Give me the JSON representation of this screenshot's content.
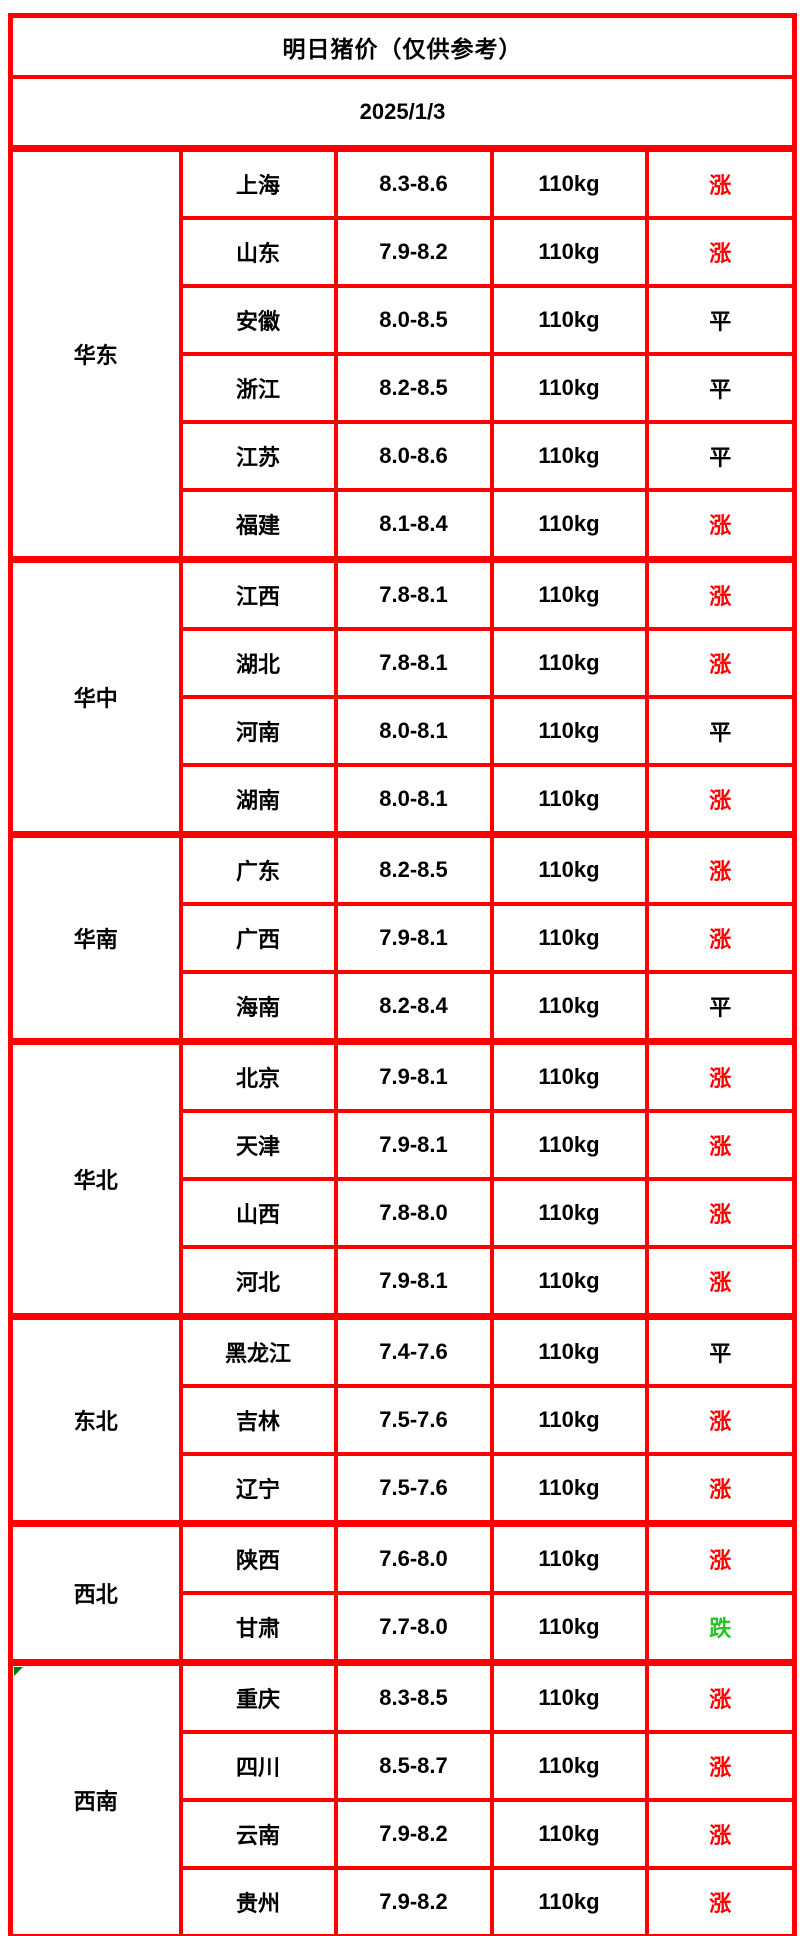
{
  "header": {
    "title": "明日猪价（仅供参考）",
    "date": "2025/1/3"
  },
  "colors": {
    "header_bg": "#ff6926",
    "border_red": "#fe0000",
    "trend_up": "#ff0000",
    "trend_flat": "#000000",
    "trend_down": "#22c322",
    "corner_marker_green": "#008000"
  },
  "table": {
    "groups": [
      {
        "region": "华东",
        "rows": [
          {
            "province": "上海",
            "price": "8.3-8.6",
            "weight": "110kg",
            "trend": "涨",
            "trend_type": "up"
          },
          {
            "province": "山东",
            "price": "7.9-8.2",
            "weight": "110kg",
            "trend": "涨",
            "trend_type": "up"
          },
          {
            "province": "安徽",
            "price": "8.0-8.5",
            "weight": "110kg",
            "trend": "平",
            "trend_type": "flat"
          },
          {
            "province": "浙江",
            "price": "8.2-8.5",
            "weight": "110kg",
            "trend": "平",
            "trend_type": "flat"
          },
          {
            "province": "江苏",
            "price": "8.0-8.6",
            "weight": "110kg",
            "trend": "平",
            "trend_type": "flat"
          },
          {
            "province": "福建",
            "price": "8.1-8.4",
            "weight": "110kg",
            "trend": "涨",
            "trend_type": "up"
          }
        ]
      },
      {
        "region": "华中",
        "rows": [
          {
            "province": "江西",
            "price": "7.8-8.1",
            "weight": "110kg",
            "trend": "涨",
            "trend_type": "up"
          },
          {
            "province": "湖北",
            "price": "7.8-8.1",
            "weight": "110kg",
            "trend": "涨",
            "trend_type": "up"
          },
          {
            "province": "河南",
            "price": "8.0-8.1",
            "weight": "110kg",
            "trend": "平",
            "trend_type": "flat"
          },
          {
            "province": "湖南",
            "price": "8.0-8.1",
            "weight": "110kg",
            "trend": "涨",
            "trend_type": "up"
          }
        ]
      },
      {
        "region": "华南",
        "rows": [
          {
            "province": "广东",
            "price": "8.2-8.5",
            "weight": "110kg",
            "trend": "涨",
            "trend_type": "up"
          },
          {
            "province": "广西",
            "price": "7.9-8.1",
            "weight": "110kg",
            "trend": "涨",
            "trend_type": "up"
          },
          {
            "province": "海南",
            "price": "8.2-8.4",
            "weight": "110kg",
            "trend": "平",
            "trend_type": "flat"
          }
        ]
      },
      {
        "region": "华北",
        "rows": [
          {
            "province": "北京",
            "price": "7.9-8.1",
            "weight": "110kg",
            "trend": "涨",
            "trend_type": "up"
          },
          {
            "province": "天津",
            "price": "7.9-8.1",
            "weight": "110kg",
            "trend": "涨",
            "trend_type": "up"
          },
          {
            "province": "山西",
            "price": "7.8-8.0",
            "weight": "110kg",
            "trend": "涨",
            "trend_type": "up"
          },
          {
            "province": "河北",
            "price": "7.9-8.1",
            "weight": "110kg",
            "trend": "涨",
            "trend_type": "up"
          }
        ]
      },
      {
        "region": "东北",
        "rows": [
          {
            "province": "黑龙江",
            "price": "7.4-7.6",
            "weight": "110kg",
            "trend": "平",
            "trend_type": "flat"
          },
          {
            "province": "吉林",
            "price": "7.5-7.6",
            "weight": "110kg",
            "trend": "涨",
            "trend_type": "up"
          },
          {
            "province": "辽宁",
            "price": "7.5-7.6",
            "weight": "110kg",
            "trend": "涨",
            "trend_type": "up"
          }
        ]
      },
      {
        "region": "西北",
        "rows": [
          {
            "province": "陕西",
            "price": "7.6-8.0",
            "weight": "110kg",
            "trend": "涨",
            "trend_type": "up"
          },
          {
            "province": "甘肃",
            "price": "7.7-8.0",
            "weight": "110kg",
            "trend": "跌",
            "trend_type": "down"
          }
        ]
      },
      {
        "region": "西南",
        "corner_marker": true,
        "rows": [
          {
            "province": "重庆",
            "price": "8.3-8.5",
            "weight": "110kg",
            "trend": "涨",
            "trend_type": "up"
          },
          {
            "province": "四川",
            "price": "8.5-8.7",
            "weight": "110kg",
            "trend": "涨",
            "trend_type": "up"
          },
          {
            "province": "云南",
            "price": "7.9-8.2",
            "weight": "110kg",
            "trend": "涨",
            "trend_type": "up"
          },
          {
            "province": "贵州",
            "price": "7.9-8.2",
            "weight": "110kg",
            "trend": "涨",
            "trend_type": "up"
          }
        ]
      }
    ]
  }
}
